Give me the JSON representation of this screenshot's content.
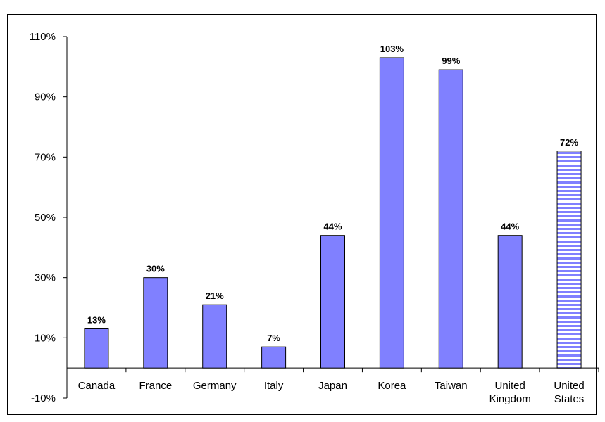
{
  "chart_data": {
    "type": "bar",
    "title": "",
    "title_visible": "",
    "categories": [
      [
        "Canada"
      ],
      [
        "France"
      ],
      [
        "Germany"
      ],
      [
        "Italy"
      ],
      [
        "Japan"
      ],
      [
        "Korea"
      ],
      [
        "Taiwan"
      ],
      [
        "United",
        "Kingdom"
      ],
      [
        "United",
        "States"
      ]
    ],
    "values": [
      13,
      30,
      21,
      7,
      44,
      103,
      99,
      44,
      72
    ],
    "data_labels": [
      "13%",
      "30%",
      "21%",
      "7%",
      "44%",
      "103%",
      "99%",
      "44%",
      "72%"
    ],
    "ylim": [
      -10,
      110
    ],
    "yticks": [
      110,
      90,
      70,
      50,
      30,
      10,
      -10
    ],
    "ytick_labels": [
      "110%",
      "90%",
      "70%",
      "50%",
      "30%",
      "10%",
      "-10%"
    ],
    "bar_color": "#8080FF",
    "highlight_category_index": 8,
    "highlight_pattern": "horizontal-stripes",
    "highlight_stripe_color": "#8080FF",
    "grid": false,
    "legend": "none"
  }
}
